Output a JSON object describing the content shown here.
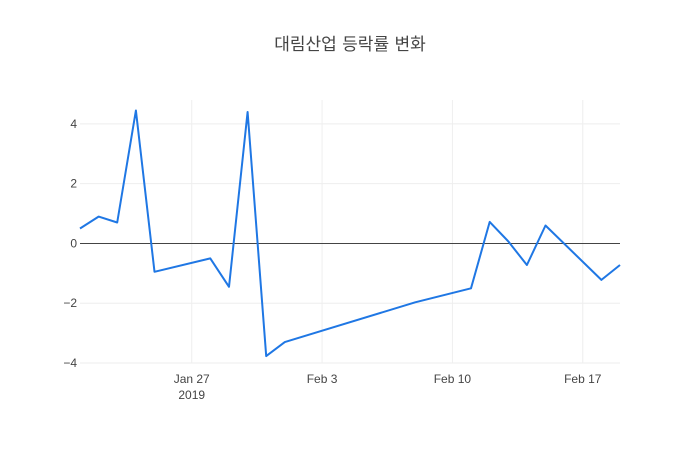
{
  "chart_data": {
    "type": "line",
    "title": "대림산업 등락률 변화",
    "xlabel": "",
    "ylabel": "",
    "x": [
      "2019-01-21",
      "2019-01-22",
      "2019-01-23",
      "2019-01-24",
      "2019-01-25",
      "2019-01-28",
      "2019-01-29",
      "2019-01-30",
      "2019-01-31",
      "2019-02-01",
      "2019-02-08",
      "2019-02-11",
      "2019-02-12",
      "2019-02-13",
      "2019-02-14",
      "2019-02-15",
      "2019-02-18",
      "2019-02-19"
    ],
    "series": [
      {
        "color": "#1f77e4",
        "values": [
          0.5,
          0.9,
          0.7,
          4.45,
          -0.95,
          -0.5,
          -1.45,
          4.4,
          -3.77,
          -3.3,
          -1.97,
          -1.5,
          0.72,
          0.07,
          -0.72,
          0.6,
          -1.22,
          -0.72
        ]
      }
    ],
    "ylim": [
      -4,
      4.8
    ],
    "xlim": [
      "2019-01-21",
      "2019-02-19"
    ],
    "y_ticks": [
      {
        "value": 4,
        "label": "4"
      },
      {
        "value": 2,
        "label": "2"
      },
      {
        "value": 0,
        "label": "0"
      },
      {
        "value": -2,
        "label": "−2"
      },
      {
        "value": -4,
        "label": "−4"
      }
    ],
    "x_ticks": [
      {
        "date": "2019-01-27",
        "label": "Jan 27",
        "sublabel": "2019"
      },
      {
        "date": "2019-02-03",
        "label": "Feb 3",
        "sublabel": ""
      },
      {
        "date": "2019-02-10",
        "label": "Feb 10",
        "sublabel": ""
      },
      {
        "date": "2019-02-17",
        "label": "Feb 17",
        "sublabel": ""
      }
    ],
    "grid": true,
    "zero_line": true
  }
}
